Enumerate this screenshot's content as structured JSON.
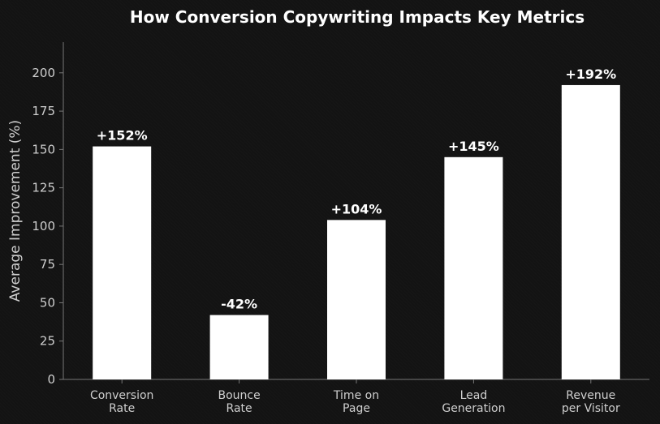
{
  "chart_data": {
    "type": "bar",
    "title": "How Conversion Copywriting Impacts Key Metrics",
    "ylabel": "Average Improvement (%)",
    "xlabel": "",
    "categories": [
      [
        "Conversion",
        "Rate"
      ],
      [
        "Bounce",
        "Rate"
      ],
      [
        "Time on",
        "Page"
      ],
      [
        "Lead",
        "Generation"
      ],
      [
        "Revenue",
        "per Visitor"
      ]
    ],
    "values": [
      152,
      42,
      104,
      145,
      192
    ],
    "data_labels": [
      "+152%",
      "-42%",
      "+104%",
      "+145%",
      "+192%"
    ],
    "ylim": [
      0,
      220
    ],
    "yticks": [
      0,
      25,
      50,
      75,
      100,
      125,
      150,
      175,
      200
    ],
    "grid": false,
    "colors": {
      "bar": "#ffffff",
      "background": "#131313",
      "text": "#ffffff",
      "axis": "#777777"
    }
  }
}
